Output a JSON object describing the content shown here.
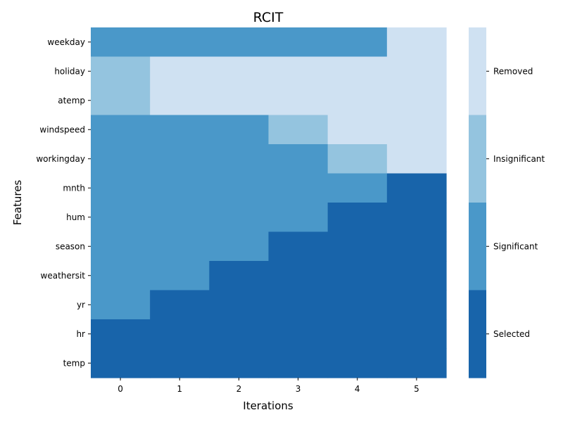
{
  "chart_data": {
    "type": "heatmap",
    "title": "RCIT",
    "xlabel": "Iterations",
    "ylabel": "Features",
    "x": [
      "0",
      "1",
      "2",
      "3",
      "4",
      "5"
    ],
    "y": [
      "weekday",
      "holiday",
      "atemp",
      "windspeed",
      "workingday",
      "mnth",
      "hum",
      "season",
      "weathersit",
      "yr",
      "hr",
      "temp"
    ],
    "categories": [
      "Selected",
      "Significant",
      "Insignificant",
      "Removed"
    ],
    "colors": {
      "Selected": "#1864aa",
      "Significant": "#4a98c9",
      "Insignificant": "#94c4df",
      "Removed": "#cfe1f2"
    },
    "values": [
      [
        1,
        1,
        1,
        1,
        1,
        3
      ],
      [
        2,
        3,
        3,
        3,
        3,
        3
      ],
      [
        2,
        3,
        3,
        3,
        3,
        3
      ],
      [
        1,
        1,
        1,
        2,
        3,
        3
      ],
      [
        1,
        1,
        1,
        1,
        2,
        3
      ],
      [
        1,
        1,
        1,
        1,
        1,
        0
      ],
      [
        1,
        1,
        1,
        1,
        0,
        0
      ],
      [
        1,
        1,
        1,
        0,
        0,
        0
      ],
      [
        1,
        1,
        0,
        0,
        0,
        0
      ],
      [
        1,
        0,
        0,
        0,
        0,
        0
      ],
      [
        0,
        0,
        0,
        0,
        0,
        0
      ],
      [
        0,
        0,
        0,
        0,
        0,
        0
      ]
    ],
    "colorbar": {
      "labels": [
        "Removed",
        "Insignificant",
        "Significant",
        "Selected"
      ]
    },
    "grid": false
  }
}
